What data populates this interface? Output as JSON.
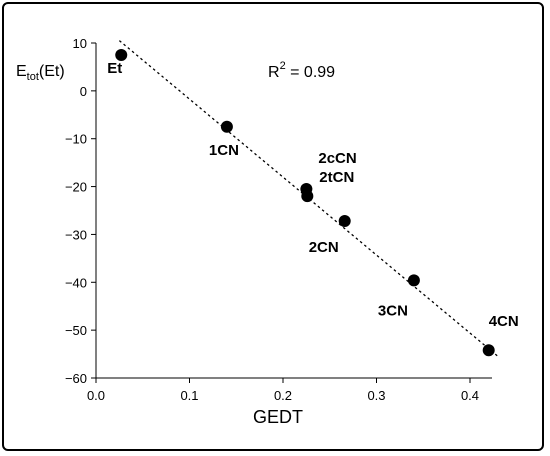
{
  "chart_data": {
    "type": "scatter",
    "xlabel": "GEDT",
    "ylabel": {
      "main": "E",
      "sub": "tot",
      "rest": "(Et)"
    },
    "xlim": [
      0.0,
      0.43
    ],
    "ylim": [
      -60,
      10
    ],
    "x_ticks": [
      0.0,
      0.1,
      0.2,
      0.3,
      0.4
    ],
    "x_tick_labels": [
      "0.0",
      "0.1",
      "0.2",
      "0.3",
      "0.4"
    ],
    "y_ticks": [
      10,
      0,
      -10,
      -20,
      -30,
      -40,
      -50,
      -60
    ],
    "y_tick_labels": [
      "10",
      "0",
      "−10",
      "−20",
      "−30",
      "−40",
      "−50",
      "−60"
    ],
    "annotation": {
      "prefix": "R",
      "sup": "2",
      "suffix": " = 0.99"
    },
    "points": [
      {
        "label": "Et",
        "x": 0.027,
        "y": 7.5
      },
      {
        "label": "1CN",
        "x": 0.14,
        "y": -7.5
      },
      {
        "label": "2cCN",
        "x": 0.225,
        "y": -20.5
      },
      {
        "label": "2tCN",
        "x": 0.226,
        "y": -22.0
      },
      {
        "label": "2CN",
        "x": 0.266,
        "y": -27.2
      },
      {
        "label": "3CN",
        "x": 0.34,
        "y": -39.6
      },
      {
        "label": "4CN",
        "x": 0.42,
        "y": -54.2
      }
    ],
    "fit_line": {
      "x": [
        0.025,
        0.43
      ],
      "y": [
        10.5,
        -55.5
      ],
      "style": "dotted"
    },
    "grid": false,
    "legend": "none"
  }
}
